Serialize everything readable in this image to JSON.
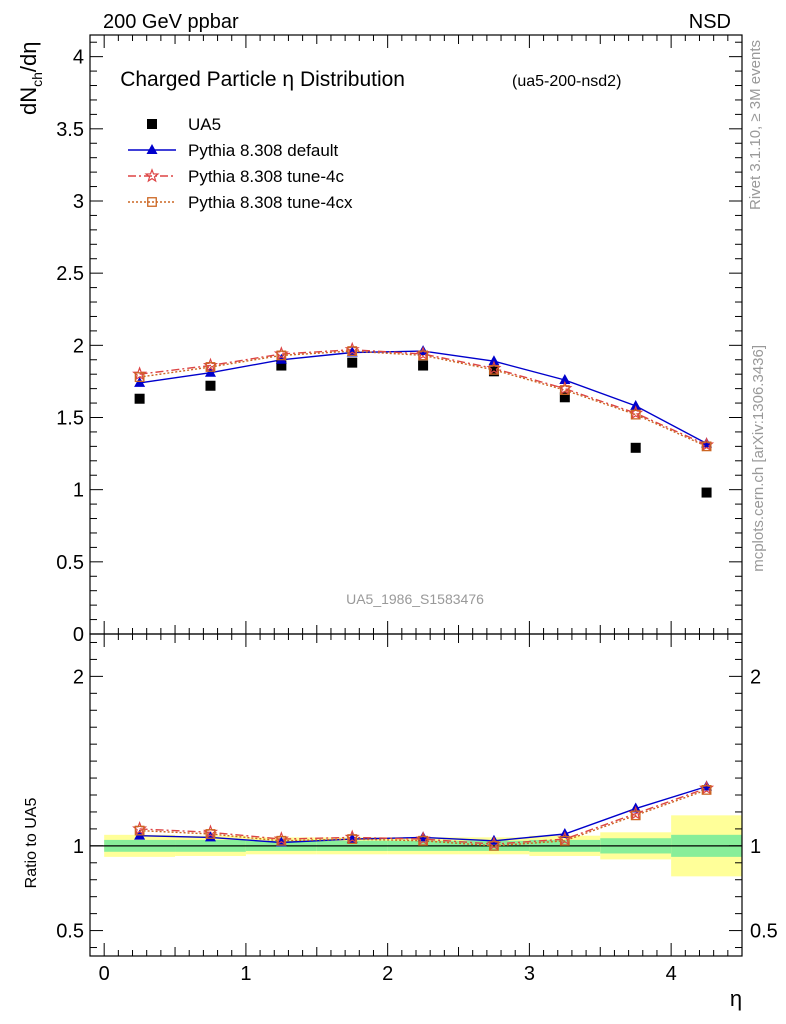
{
  "header": {
    "left_label": "200 GeV ppbar",
    "right_label": "NSD"
  },
  "side_labels": {
    "rivet": "Rivet 3.1.10, ≥ 3M events",
    "mcplots": "mcplots.cern.ch [arXiv:1306.3436]"
  },
  "chart_data": [
    {
      "type": "scatter",
      "panel": "main",
      "title": "Charged Particle η Distribution",
      "subtitle": "(ua5-200-nsd2)",
      "watermark": "UA5_1986_S1583476",
      "xlabel": "η",
      "ylabel": "dNch/dη",
      "ylabel_parts": {
        "main": "dN",
        "sub": "ch",
        "rest": "/dη"
      },
      "xlim": [
        -0.1,
        4.5
      ],
      "ylim": [
        0,
        4.15
      ],
      "y_ticks": [
        0,
        0.5,
        1,
        1.5,
        2,
        2.5,
        3,
        3.5,
        4
      ],
      "y_tick_labels": [
        "0",
        "0.5",
        "1",
        "1.5",
        "2",
        "2.5",
        "3",
        "3.5",
        "4"
      ],
      "legend_position": "top-left",
      "grid": false,
      "series": [
        {
          "name": "UA5",
          "style": "data",
          "color": "#000000",
          "marker": "square",
          "x": [
            0.25,
            0.75,
            1.25,
            1.75,
            2.25,
            2.75,
            3.25,
            3.75,
            4.25
          ],
          "y": [
            1.63,
            1.72,
            1.86,
            1.88,
            1.86,
            1.82,
            1.64,
            1.29,
            0.98
          ]
        },
        {
          "name": "Pythia 8.308 default",
          "style": "solid",
          "color": "#0000cc",
          "marker": "triangle",
          "x": [
            0.25,
            0.75,
            1.25,
            1.75,
            2.25,
            2.75,
            3.25,
            3.75,
            4.25
          ],
          "y": [
            1.74,
            1.81,
            1.9,
            1.95,
            1.96,
            1.89,
            1.76,
            1.58,
            1.32
          ]
        },
        {
          "name": "Pythia 8.308 tune-4c",
          "style": "dashdot",
          "color": "#dd4444",
          "marker": "star",
          "x": [
            0.25,
            0.75,
            1.25,
            1.75,
            2.25,
            2.75,
            3.25,
            3.75,
            4.25
          ],
          "y": [
            1.8,
            1.86,
            1.94,
            1.97,
            1.94,
            1.84,
            1.7,
            1.53,
            1.31
          ]
        },
        {
          "name": "Pythia 8.308 tune-4cx",
          "style": "dotted",
          "color": "#cc6622",
          "marker": "open-square",
          "x": [
            0.25,
            0.75,
            1.25,
            1.75,
            2.25,
            2.75,
            3.25,
            3.75,
            4.25
          ],
          "y": [
            1.78,
            1.85,
            1.93,
            1.96,
            1.93,
            1.83,
            1.69,
            1.52,
            1.3
          ]
        }
      ]
    },
    {
      "type": "line",
      "panel": "ratio",
      "xlabel": "η",
      "ylabel": "Ratio to UA5",
      "xlim": [
        -0.1,
        4.5
      ],
      "ylim": [
        0.35,
        2.25
      ],
      "x_ticks": [
        0,
        1,
        2,
        3,
        4
      ],
      "x_tick_labels": [
        "0",
        "1",
        "2",
        "3",
        "4"
      ],
      "y_ticks": [
        0.5,
        1,
        2
      ],
      "y_tick_labels": [
        "0.5",
        "1",
        "2"
      ],
      "reference_line": 1,
      "uncertainty_bands": {
        "bins": [
          [
            0,
            0.5
          ],
          [
            0.5,
            1
          ],
          [
            1,
            1.5
          ],
          [
            1.5,
            2
          ],
          [
            2,
            2.5
          ],
          [
            2.5,
            3
          ],
          [
            3,
            3.5
          ],
          [
            3.5,
            4
          ],
          [
            4,
            4.5
          ]
        ],
        "inner": [
          0.035,
          0.035,
          0.03,
          0.03,
          0.03,
          0.03,
          0.035,
          0.045,
          0.065
        ],
        "outer": [
          0.065,
          0.06,
          0.05,
          0.05,
          0.05,
          0.05,
          0.06,
          0.08,
          0.18
        ],
        "inner_color": "#88ee99",
        "outer_color": "#ffff99"
      },
      "series": [
        {
          "name": "Pythia 8.308 default",
          "style": "solid",
          "color": "#0000cc",
          "marker": "triangle",
          "x": [
            0.25,
            0.75,
            1.25,
            1.75,
            2.25,
            2.75,
            3.25,
            3.75,
            4.25
          ],
          "y": [
            1.06,
            1.05,
            1.02,
            1.04,
            1.05,
            1.03,
            1.07,
            1.22,
            1.35
          ]
        },
        {
          "name": "Pythia 8.308 tune-4c",
          "style": "dashdot",
          "color": "#dd4444",
          "marker": "star",
          "x": [
            0.25,
            0.75,
            1.25,
            1.75,
            2.25,
            2.75,
            3.25,
            3.75,
            4.25
          ],
          "y": [
            1.1,
            1.08,
            1.04,
            1.05,
            1.04,
            1.01,
            1.04,
            1.19,
            1.34
          ]
        },
        {
          "name": "Pythia 8.308 tune-4cx",
          "style": "dotted",
          "color": "#cc6622",
          "marker": "open-square",
          "x": [
            0.25,
            0.75,
            1.25,
            1.75,
            2.25,
            2.75,
            3.25,
            3.75,
            4.25
          ],
          "y": [
            1.09,
            1.07,
            1.03,
            1.04,
            1.03,
            1.0,
            1.03,
            1.18,
            1.33
          ]
        }
      ]
    }
  ]
}
